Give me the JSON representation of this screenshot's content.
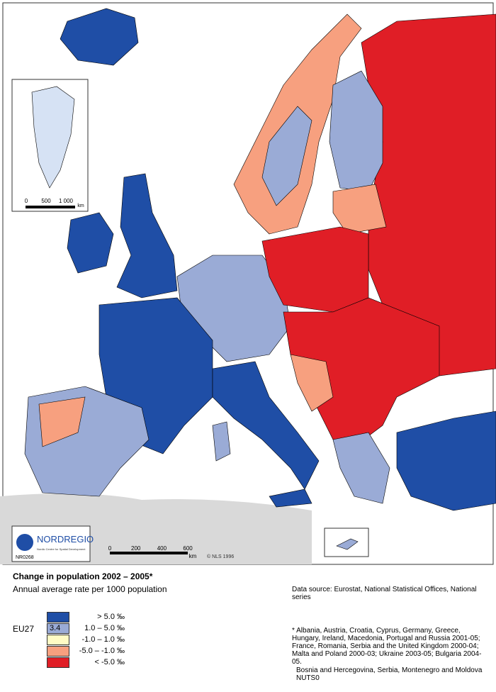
{
  "map": {
    "title": "Change in population 2002 – 2005*",
    "subtitle": "Annual average rate per 1000 population",
    "data_source": "Data source: Eurostat, National Statistical Offices, National series",
    "footnote": "* Albania, Austria, Croatia, Cyprus, Germany, Greece, Hungary, Ireland, Macedonia, Portugal and Russia 2001-05; France, Romania, Serbia and the United Kingdom 2000-04; Malta and Poland 2000-03; Ukraine 2003-05; Bulgaria 2004-05.",
    "note": "Bosnia and Hercegovina, Serbia, Montenegro and Moldova NUTS0",
    "eu_label": "EU27",
    "eu_value": 3.4,
    "legend": [
      {
        "label": "> 5.0 ‰",
        "color": "#1f4ea6"
      },
      {
        "label": "1.0  – 5.0 ‰",
        "color": "#9aabd6"
      },
      {
        "label": "-1.0  –  1.0 ‰",
        "color": "#fffbc4"
      },
      {
        "label": "-5.0  – -1.0 ‰",
        "color": "#f7a07f"
      },
      {
        "label": "< -5.0 ‰",
        "color": "#e01e26"
      }
    ],
    "scale": {
      "ticks": [
        "0",
        "200",
        "400",
        "600"
      ],
      "unit": "km"
    },
    "inset_scale": {
      "ticks": [
        "0",
        "500",
        "1 000"
      ],
      "unit": "km"
    },
    "copyright": "© NLS 1996",
    "logo": {
      "name": "NORDREGIO",
      "tagline": "Nordic Centre for Spatial Development",
      "code": "NR0268"
    }
  }
}
